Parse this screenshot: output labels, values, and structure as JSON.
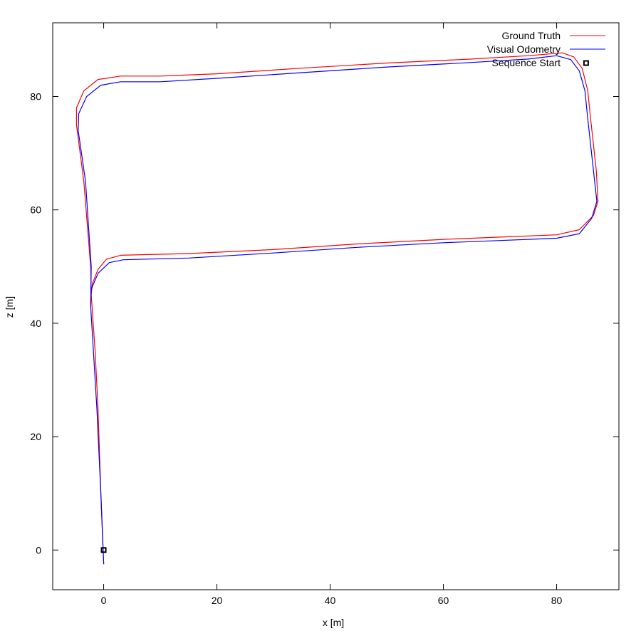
{
  "chart_data": {
    "type": "line",
    "xlabel": "x [m]",
    "ylabel": "z [m]",
    "xlim": [
      -9,
      91
    ],
    "ylim": [
      -7,
      93
    ],
    "xticks": [
      0,
      20,
      40,
      60,
      80
    ],
    "yticks": [
      0,
      20,
      40,
      60,
      80
    ],
    "grid": false,
    "legend_position": "top-right",
    "series": [
      {
        "name": "Ground Truth",
        "color": "#ff0000",
        "points": [
          [
            0,
            -2.5
          ],
          [
            -0.5,
            10
          ],
          [
            -1.0,
            25
          ],
          [
            -1.5,
            35
          ],
          [
            -2.2,
            45
          ],
          [
            -2.0,
            47
          ],
          [
            -1.0,
            49.5
          ],
          [
            0.5,
            51.3
          ],
          [
            3,
            52
          ],
          [
            15,
            52.3
          ],
          [
            30,
            53
          ],
          [
            45,
            54
          ],
          [
            60,
            54.8
          ],
          [
            70,
            55.2
          ],
          [
            80,
            55.6
          ],
          [
            84,
            56.5
          ],
          [
            86.5,
            59
          ],
          [
            87.3,
            61.5
          ],
          [
            87,
            67
          ],
          [
            86,
            76
          ],
          [
            85.5,
            81
          ],
          [
            84.5,
            85
          ],
          [
            83,
            87
          ],
          [
            81,
            87.7
          ],
          [
            75,
            87.2
          ],
          [
            65,
            86.6
          ],
          [
            50,
            85.9
          ],
          [
            35,
            85
          ],
          [
            20,
            84
          ],
          [
            10,
            83.6
          ],
          [
            3,
            83.6
          ],
          [
            -1,
            83
          ],
          [
            -3.5,
            81
          ],
          [
            -4.8,
            78
          ],
          [
            -4.8,
            75
          ],
          [
            -3.5,
            65
          ],
          [
            -2.3,
            50
          ],
          [
            -2.2,
            45
          ]
        ]
      },
      {
        "name": "Visual Odometry",
        "color": "#0000ff",
        "points": [
          [
            0,
            -2.5
          ],
          [
            -0.5,
            10
          ],
          [
            -1.2,
            25
          ],
          [
            -1.8,
            35
          ],
          [
            -2.3,
            43
          ],
          [
            -2.2,
            46
          ],
          [
            -1.0,
            48.8
          ],
          [
            1,
            50.7
          ],
          [
            3.5,
            51.2
          ],
          [
            15,
            51.5
          ],
          [
            30,
            52.4
          ],
          [
            45,
            53.4
          ],
          [
            60,
            54.2
          ],
          [
            70,
            54.6
          ],
          [
            80,
            55
          ],
          [
            84,
            55.8
          ],
          [
            86.2,
            58.5
          ],
          [
            87.1,
            61.5
          ],
          [
            86.5,
            67
          ],
          [
            85.5,
            76
          ],
          [
            85,
            81
          ],
          [
            84,
            84.5
          ],
          [
            82.5,
            86.5
          ],
          [
            80,
            87.2
          ],
          [
            75,
            86.6
          ],
          [
            65,
            86
          ],
          [
            50,
            85.2
          ],
          [
            35,
            84.2
          ],
          [
            20,
            83.2
          ],
          [
            10,
            82.6
          ],
          [
            3,
            82.6
          ],
          [
            -0.5,
            82
          ],
          [
            -3,
            80
          ],
          [
            -4.4,
            77
          ],
          [
            -4.5,
            74
          ],
          [
            -3.2,
            65
          ],
          [
            -2.2,
            50
          ],
          [
            -2.3,
            43
          ]
        ]
      }
    ],
    "markers": [
      {
        "name": "Sequence Start",
        "points": [
          [
            0,
            0
          ],
          [
            85.2,
            85.9
          ]
        ]
      }
    ]
  }
}
